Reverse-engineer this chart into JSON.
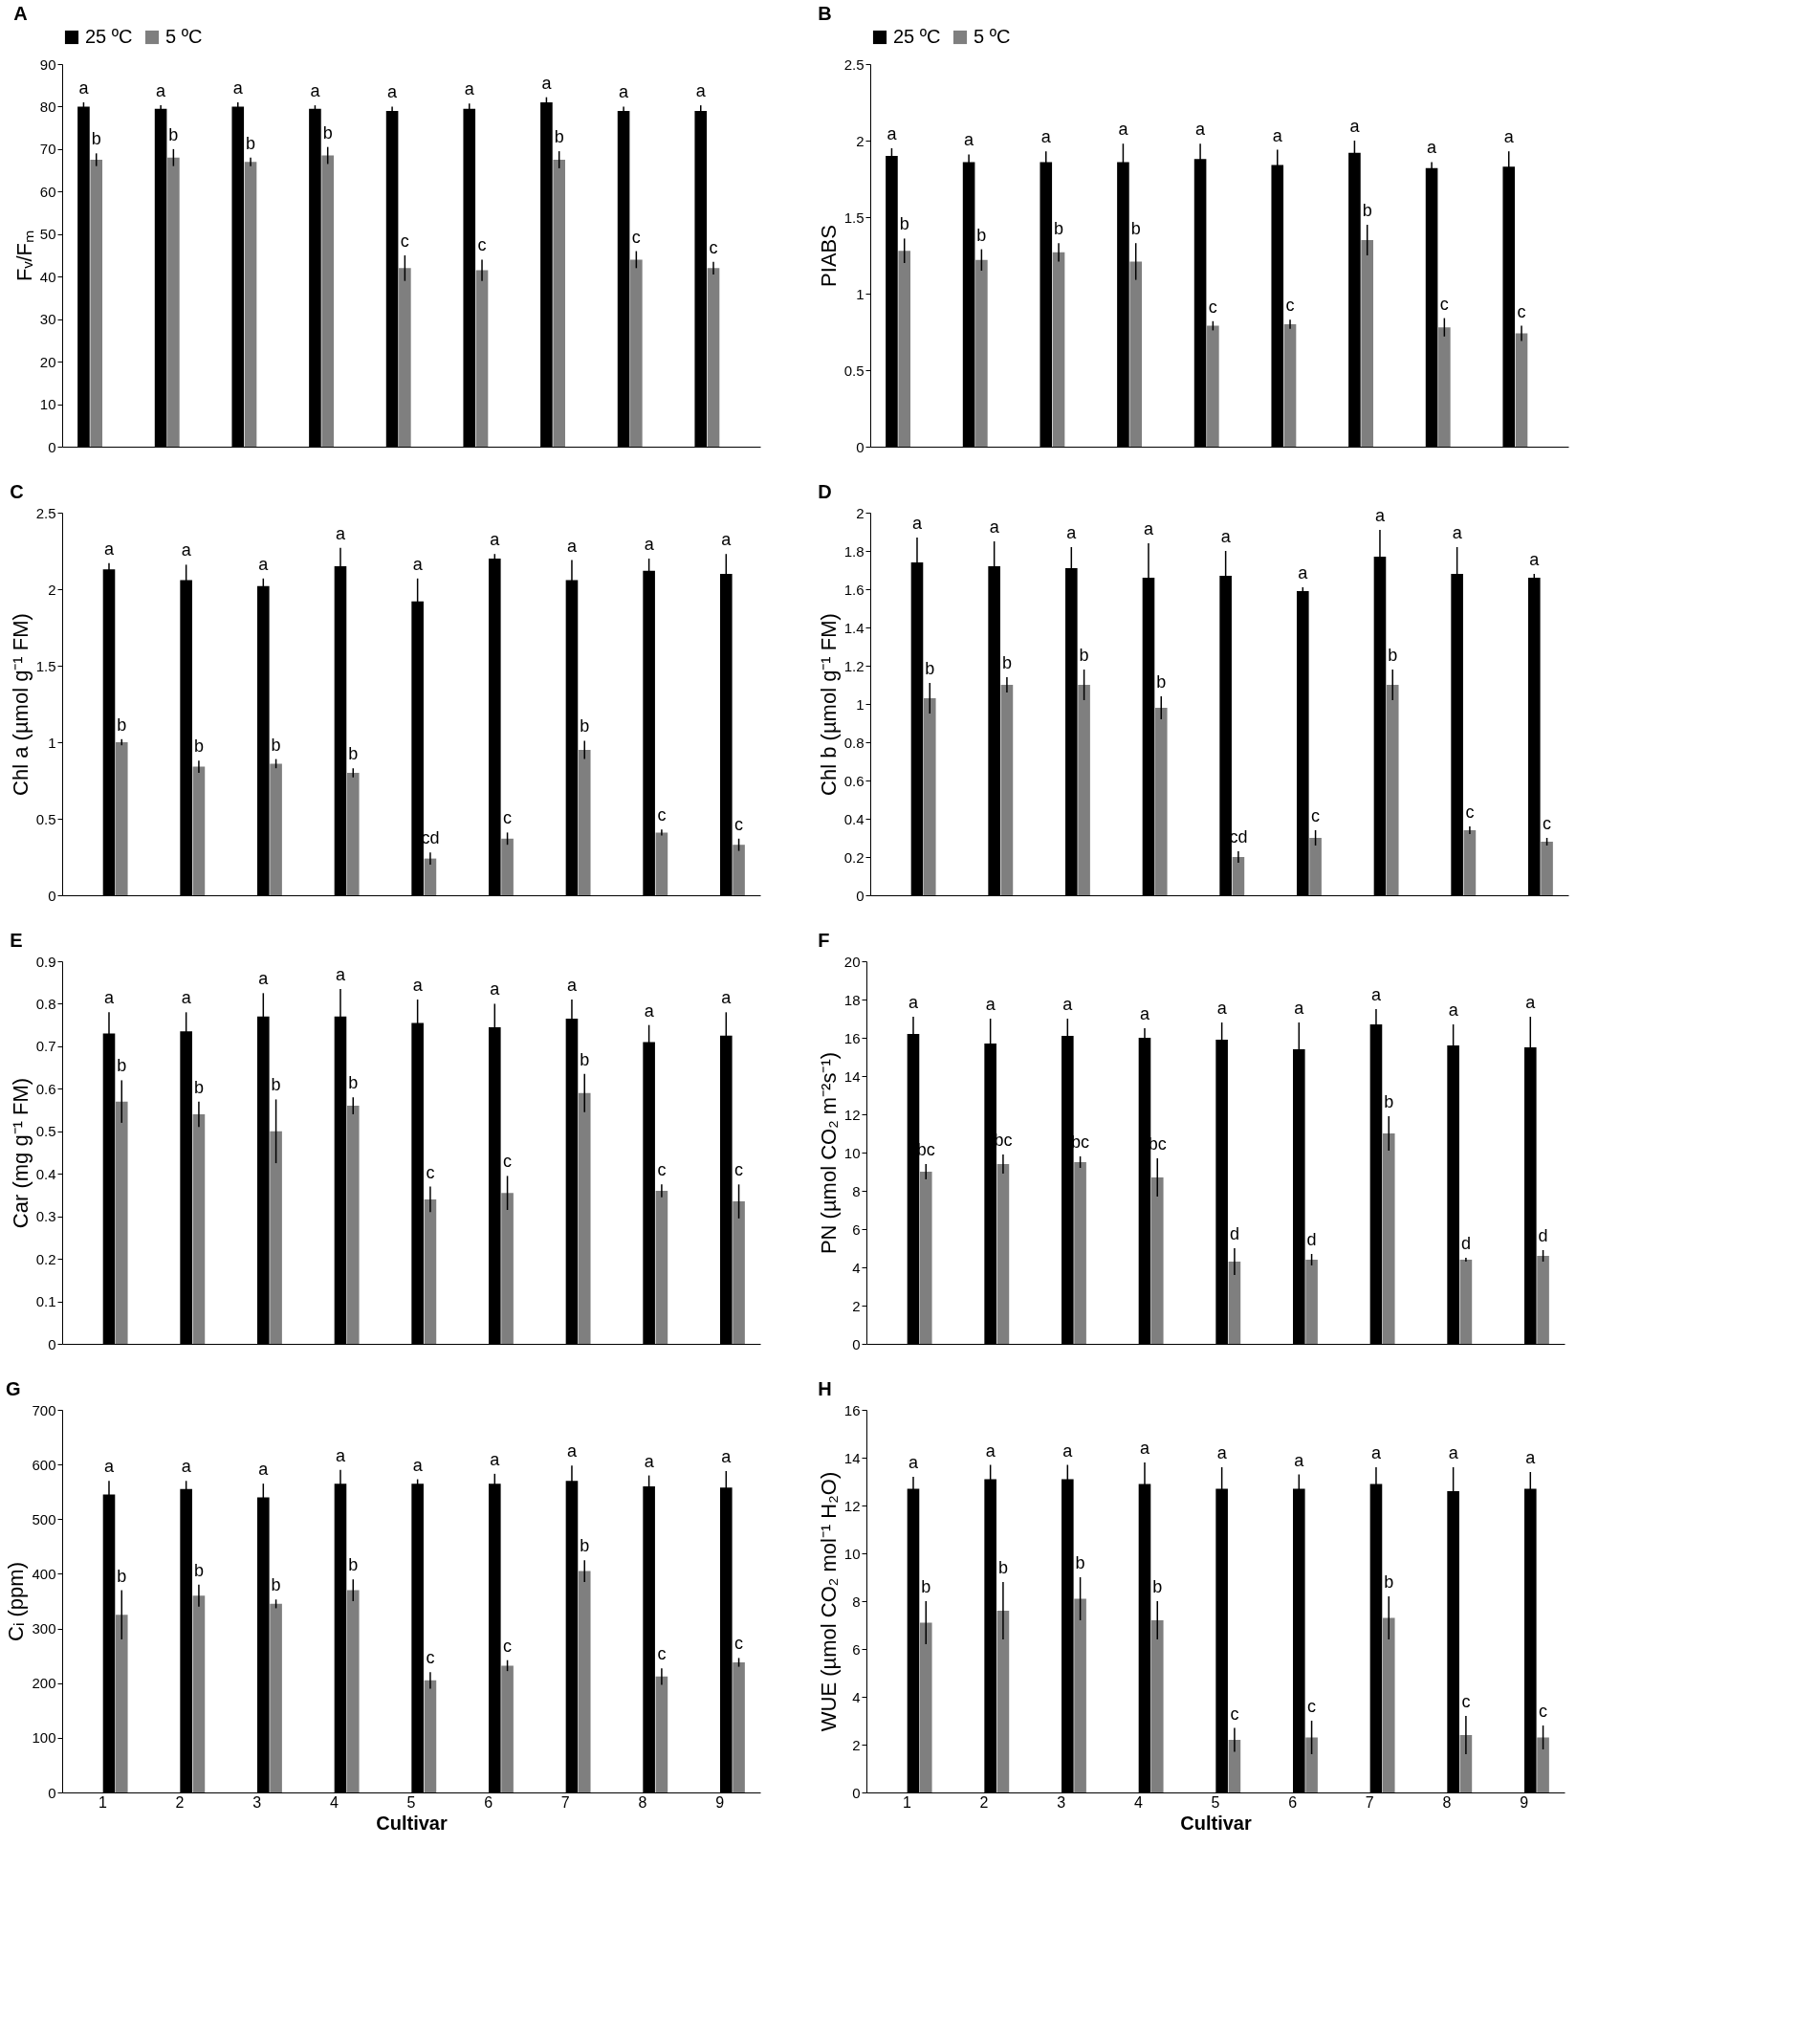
{
  "chart_data": [
    {
      "type": "bar",
      "title": "A",
      "ylabel": "Fᵥ/Fₘ",
      "categories": [
        "1",
        "2",
        "3",
        "4",
        "5",
        "6",
        "7",
        "8",
        "9"
      ],
      "ylim": [
        0,
        90
      ],
      "yticks": [
        0,
        10,
        20,
        30,
        40,
        50,
        60,
        70,
        80,
        90
      ],
      "grid": false,
      "legend": "top",
      "tick_labels": "y",
      "series": [
        {
          "name": "25 ºC",
          "color": "#000000",
          "values": [
            80,
            79.5,
            80,
            79.5,
            79,
            79.5,
            81,
            79,
            79
          ],
          "errors": [
            1,
            0.8,
            1,
            0.8,
            1,
            1.2,
            1.2,
            1,
            1.3
          ],
          "value_labels": [
            "a",
            "a",
            "a",
            "a",
            "a",
            "a",
            "a",
            "a",
            "a"
          ]
        },
        {
          "name": "5 ºC",
          "color": "#7f7f7f",
          "values": [
            67.5,
            68,
            67,
            68.5,
            42,
            41.5,
            67.5,
            44,
            42
          ],
          "errors": [
            1.5,
            2,
            1,
            2,
            3,
            2.5,
            2,
            2,
            1.5
          ],
          "value_labels": [
            "b",
            "b",
            "b",
            "b",
            "c",
            "c",
            "b",
            "c",
            "c"
          ]
        }
      ]
    },
    {
      "type": "bar",
      "title": "B",
      "ylabel": "PIABS",
      "categories": [
        "1",
        "2",
        "3",
        "4",
        "5",
        "6",
        "7",
        "8",
        "9"
      ],
      "ylim": [
        0,
        2.5
      ],
      "yticks": [
        0,
        0.5,
        1,
        1.5,
        2,
        2.5
      ],
      "grid": false,
      "legend": "top",
      "tick_labels": "y",
      "series": [
        {
          "name": "25 ºC",
          "color": "#000000",
          "values": [
            1.9,
            1.86,
            1.86,
            1.86,
            1.88,
            1.84,
            1.92,
            1.82,
            1.83
          ],
          "errors": [
            0.05,
            0.05,
            0.07,
            0.12,
            0.1,
            0.1,
            0.08,
            0.04,
            0.1
          ],
          "value_labels": [
            "a",
            "a",
            "a",
            "a",
            "a",
            "a",
            "a",
            "a",
            "a"
          ]
        },
        {
          "name": "5 ºC",
          "color": "#7f7f7f",
          "values": [
            1.28,
            1.22,
            1.27,
            1.21,
            0.79,
            0.8,
            1.35,
            0.78,
            0.74
          ],
          "errors": [
            0.08,
            0.07,
            0.06,
            0.12,
            0.03,
            0.03,
            0.1,
            0.06,
            0.05
          ],
          "value_labels": [
            "b",
            "b",
            "b",
            "b",
            "c",
            "c",
            "b",
            "c",
            "c"
          ]
        }
      ]
    },
    {
      "type": "bar",
      "title": "C",
      "ylabel": "Chl a (µmol g⁻¹ FM)",
      "categories": [
        "1",
        "2",
        "3",
        "4",
        "5",
        "6",
        "7",
        "8",
        "9"
      ],
      "ylim": [
        0,
        2.5
      ],
      "yticks": [
        0,
        0.5,
        1,
        1.5,
        2,
        2.5
      ],
      "grid": false,
      "tick_labels": "y",
      "series": [
        {
          "color": "#000000",
          "values": [
            2.13,
            2.06,
            2.02,
            2.15,
            1.92,
            2.2,
            2.06,
            2.12,
            2.1
          ],
          "errors": [
            0.04,
            0.1,
            0.05,
            0.12,
            0.15,
            0.03,
            0.13,
            0.08,
            0.13
          ],
          "value_labels": [
            "a",
            "a",
            "a",
            "a",
            "a",
            "a",
            "a",
            "a",
            "a"
          ]
        },
        {
          "color": "#7f7f7f",
          "values": [
            1.0,
            0.84,
            0.86,
            0.8,
            0.24,
            0.37,
            0.95,
            0.41,
            0.33
          ],
          "errors": [
            0.02,
            0.04,
            0.03,
            0.03,
            0.04,
            0.04,
            0.06,
            0.02,
            0.04
          ],
          "value_labels": [
            "b",
            "b",
            "b",
            "b",
            "cd",
            "c",
            "b",
            "c",
            "c"
          ]
        }
      ]
    },
    {
      "type": "bar",
      "title": "D",
      "ylabel": "Chl b (µmol g⁻¹ FM)",
      "categories": [
        "1",
        "2",
        "3",
        "4",
        "5",
        "6",
        "7",
        "8",
        "9"
      ],
      "ylim": [
        0,
        2
      ],
      "yticks": [
        0,
        0.2,
        0.4,
        0.6,
        0.8,
        1,
        1.2,
        1.4,
        1.6,
        1.8,
        2
      ],
      "grid": false,
      "tick_labels": "y",
      "series": [
        {
          "color": "#000000",
          "values": [
            1.74,
            1.72,
            1.71,
            1.66,
            1.67,
            1.59,
            1.77,
            1.68,
            1.66
          ],
          "errors": [
            0.13,
            0.13,
            0.11,
            0.18,
            0.13,
            0.02,
            0.14,
            0.14,
            0.02
          ],
          "value_labels": [
            "a",
            "a",
            "a",
            "a",
            "a",
            "a",
            "a",
            "a",
            "a"
          ]
        },
        {
          "color": "#7f7f7f",
          "values": [
            1.03,
            1.1,
            1.1,
            0.98,
            0.2,
            0.3,
            1.1,
            0.34,
            0.28
          ],
          "errors": [
            0.08,
            0.04,
            0.08,
            0.06,
            0.03,
            0.04,
            0.08,
            0.02,
            0.02
          ],
          "value_labels": [
            "b",
            "b",
            "b",
            "b",
            "cd",
            "c",
            "b",
            "c",
            "c"
          ]
        }
      ]
    },
    {
      "type": "bar",
      "title": "E",
      "ylabel": "Car (mg g⁻¹ FM)",
      "categories": [
        "1",
        "2",
        "3",
        "4",
        "5",
        "6",
        "7",
        "8",
        "9"
      ],
      "ylim": [
        0,
        0.9
      ],
      "yticks": [
        0,
        0.1,
        0.2,
        0.3,
        0.4,
        0.5,
        0.6,
        0.7,
        0.8,
        0.9
      ],
      "grid": false,
      "tick_labels": "y",
      "series": [
        {
          "color": "#000000",
          "values": [
            0.73,
            0.735,
            0.77,
            0.77,
            0.755,
            0.745,
            0.765,
            0.71,
            0.725
          ],
          "errors": [
            0.05,
            0.045,
            0.055,
            0.065,
            0.055,
            0.055,
            0.045,
            0.04,
            0.055
          ],
          "value_labels": [
            "a",
            "a",
            "a",
            "a",
            "a",
            "a",
            "a",
            "a",
            "a"
          ]
        },
        {
          "color": "#7f7f7f",
          "values": [
            0.57,
            0.54,
            0.5,
            0.56,
            0.34,
            0.355,
            0.59,
            0.36,
            0.335
          ],
          "errors": [
            0.05,
            0.03,
            0.075,
            0.02,
            0.03,
            0.04,
            0.045,
            0.015,
            0.04
          ],
          "value_labels": [
            "b",
            "b",
            "b",
            "b",
            "c",
            "c",
            "b",
            "c",
            "c"
          ]
        }
      ]
    },
    {
      "type": "bar",
      "title": "F",
      "ylabel": "PN (µmol CO₂ m⁻²s⁻¹)",
      "categories": [
        "1",
        "2",
        "3",
        "4",
        "5",
        "6",
        "7",
        "8",
        "9"
      ],
      "ylim": [
        0,
        20
      ],
      "yticks": [
        0,
        2,
        4,
        6,
        8,
        10,
        12,
        14,
        16,
        18,
        20
      ],
      "grid": false,
      "tick_labels": "y",
      "series": [
        {
          "color": "#000000",
          "values": [
            16.2,
            15.7,
            16.1,
            16.0,
            15.9,
            15.4,
            16.7,
            15.6,
            15.5
          ],
          "errors": [
            0.9,
            1.3,
            0.9,
            0.5,
            0.9,
            1.4,
            0.8,
            1.1,
            1.6
          ],
          "value_labels": [
            "a",
            "a",
            "a",
            "a",
            "a",
            "a",
            "a",
            "a",
            "a"
          ]
        },
        {
          "color": "#7f7f7f",
          "values": [
            9.0,
            9.4,
            9.5,
            8.7,
            4.3,
            4.4,
            11.0,
            4.4,
            4.6
          ],
          "errors": [
            0.4,
            0.5,
            0.3,
            1.0,
            0.7,
            0.3,
            0.9,
            0.1,
            0.3
          ],
          "value_labels": [
            "bc",
            "bc",
            "bc",
            "bc",
            "d",
            "d",
            "b",
            "d",
            "d"
          ]
        }
      ]
    },
    {
      "type": "bar",
      "title": "G",
      "xlabel": "Cultivar",
      "ylabel": "Cᵢ (ppm)",
      "categories": [
        "1",
        "2",
        "3",
        "4",
        "5",
        "6",
        "7",
        "8",
        "9"
      ],
      "ylim": [
        0,
        700
      ],
      "yticks": [
        0,
        100,
        200,
        300,
        400,
        500,
        600,
        700
      ],
      "grid": false,
      "series": [
        {
          "color": "#000000",
          "values": [
            545,
            555,
            540,
            565,
            565,
            565,
            570,
            560,
            558
          ],
          "errors": [
            25,
            15,
            25,
            25,
            8,
            18,
            28,
            20,
            30
          ],
          "value_labels": [
            "a",
            "a",
            "a",
            "a",
            "a",
            "a",
            "a",
            "a",
            "a"
          ]
        },
        {
          "color": "#7f7f7f",
          "values": [
            325,
            360,
            345,
            370,
            205,
            232,
            405,
            212,
            238
          ],
          "errors": [
            45,
            20,
            8,
            20,
            15,
            10,
            20,
            15,
            8
          ],
          "value_labels": [
            "b",
            "b",
            "b",
            "b",
            "c",
            "c",
            "b",
            "c",
            "c"
          ]
        }
      ]
    },
    {
      "type": "bar",
      "title": "H",
      "xlabel": "Cultivar",
      "ylabel": "WUE (µmol CO₂ mol⁻¹ H₂O)",
      "categories": [
        "1",
        "2",
        "3",
        "4",
        "5",
        "6",
        "7",
        "8",
        "9"
      ],
      "ylim": [
        0,
        16
      ],
      "yticks": [
        0,
        2,
        4,
        6,
        8,
        10,
        12,
        14,
        16
      ],
      "grid": false,
      "series": [
        {
          "color": "#000000",
          "values": [
            12.7,
            13.1,
            13.1,
            12.9,
            12.7,
            12.7,
            12.9,
            12.6,
            12.7
          ],
          "errors": [
            0.5,
            0.6,
            0.6,
            0.9,
            0.9,
            0.6,
            0.7,
            1.0,
            0.7
          ],
          "value_labels": [
            "a",
            "a",
            "a",
            "a",
            "a",
            "a",
            "a",
            "a",
            "a"
          ]
        },
        {
          "color": "#7f7f7f",
          "values": [
            7.1,
            7.6,
            8.1,
            7.2,
            2.2,
            2.3,
            7.3,
            2.4,
            2.3
          ],
          "errors": [
            0.9,
            1.2,
            0.9,
            0.8,
            0.5,
            0.7,
            0.9,
            0.8,
            0.5
          ],
          "value_labels": [
            "b",
            "b",
            "b",
            "b",
            "c",
            "c",
            "b",
            "c",
            "c"
          ]
        }
      ]
    }
  ]
}
